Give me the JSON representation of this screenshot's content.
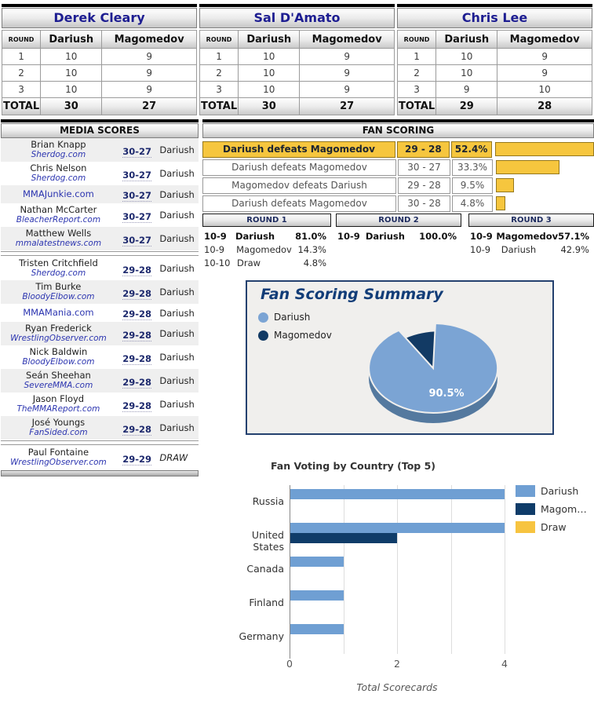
{
  "judges": [
    {
      "name": "Derek Cleary",
      "round_label": "ROUND",
      "total_label": "TOTAL",
      "fighters": [
        "Dariush",
        "Magomedov"
      ],
      "rounds": [
        [
          "1",
          "10",
          "9"
        ],
        [
          "2",
          "10",
          "9"
        ],
        [
          "3",
          "10",
          "9"
        ]
      ],
      "totals": [
        "30",
        "27"
      ]
    },
    {
      "name": "Sal D'Amato",
      "round_label": "ROUND",
      "total_label": "TOTAL",
      "fighters": [
        "Dariush",
        "Magomedov"
      ],
      "rounds": [
        [
          "1",
          "10",
          "9"
        ],
        [
          "2",
          "10",
          "9"
        ],
        [
          "3",
          "10",
          "9"
        ]
      ],
      "totals": [
        "30",
        "27"
      ]
    },
    {
      "name": "Chris Lee",
      "round_label": "ROUND",
      "total_label": "TOTAL",
      "fighters": [
        "Dariush",
        "Magomedov"
      ],
      "rounds": [
        [
          "1",
          "10",
          "9"
        ],
        [
          "2",
          "10",
          "9"
        ],
        [
          "3",
          "9",
          "10"
        ]
      ],
      "totals": [
        "29",
        "28"
      ]
    }
  ],
  "media": {
    "title": "MEDIA SCORES",
    "rows": [
      {
        "group": 1,
        "name": "Brian Knapp",
        "site": "Sherdog.com",
        "score": "30-27",
        "winner": "Dariush"
      },
      {
        "group": 1,
        "name": "Chris Nelson",
        "site": "Sherdog.com",
        "score": "30-27",
        "winner": "Dariush"
      },
      {
        "group": 1,
        "name": "",
        "site": "MMAJunkie.com",
        "score": "30-27",
        "winner": "Dariush"
      },
      {
        "group": 1,
        "name": "Nathan McCarter",
        "site": "BleacherReport.com",
        "score": "30-27",
        "winner": "Dariush"
      },
      {
        "group": 1,
        "name": "Matthew Wells",
        "site": "mmalatestnews.com",
        "score": "30-27",
        "winner": "Dariush"
      },
      {
        "group": 2,
        "name": "Tristen Critchfield",
        "site": "Sherdog.com",
        "score": "29-28",
        "winner": "Dariush"
      },
      {
        "group": 2,
        "name": "Tim Burke",
        "site": "BloodyElbow.com",
        "score": "29-28",
        "winner": "Dariush"
      },
      {
        "group": 2,
        "name": "",
        "site": "MMAMania.com",
        "score": "29-28",
        "winner": "Dariush"
      },
      {
        "group": 2,
        "name": "Ryan Frederick",
        "site": "WrestlingObserver.com",
        "score": "29-28",
        "winner": "Dariush"
      },
      {
        "group": 2,
        "name": "Nick Baldwin",
        "site": "BloodyElbow.com",
        "score": "29-28",
        "winner": "Dariush"
      },
      {
        "group": 2,
        "name": "Seán Sheehan",
        "site": "SevereMMA.com",
        "score": "29-28",
        "winner": "Dariush"
      },
      {
        "group": 2,
        "name": "Jason Floyd",
        "site": "TheMMAReport.com",
        "score": "29-28",
        "winner": "Dariush"
      },
      {
        "group": 2,
        "name": "José Youngs",
        "site": "FanSided.com",
        "score": "29-28",
        "winner": "Dariush"
      },
      {
        "group": 3,
        "name": "Paul Fontaine",
        "site": "WrestlingObserver.com",
        "score": "29-29",
        "winner": "DRAW"
      }
    ]
  },
  "fan_scoring": {
    "title": "FAN SCORING",
    "rows": [
      {
        "outcome": "Dariush defeats Magomedov",
        "score": "29 - 28",
        "pct": "52.4%",
        "pct_value": 52.4,
        "highlight": true
      },
      {
        "outcome": "Dariush defeats Magomedov",
        "score": "30 - 27",
        "pct": "33.3%",
        "pct_value": 33.3,
        "highlight": false
      },
      {
        "outcome": "Magomedov defeats Dariush",
        "score": "29 - 28",
        "pct": "9.5%",
        "pct_value": 9.5,
        "highlight": false
      },
      {
        "outcome": "Dariush defeats Magomedov",
        "score": "30 - 28",
        "pct": "4.8%",
        "pct_value": 4.8,
        "highlight": false
      }
    ]
  },
  "round_breakdown": [
    {
      "title": "ROUND 1",
      "rows": [
        {
          "score": "10-9",
          "name": "Dariush",
          "pct": "81.0%",
          "bold": true
        },
        {
          "score": "10-9",
          "name": "Magomedov",
          "pct": "14.3%",
          "bold": false
        },
        {
          "score": "10-10",
          "name": "Draw",
          "pct": "4.8%",
          "bold": false
        }
      ]
    },
    {
      "title": "ROUND 2",
      "rows": [
        {
          "score": "10-9",
          "name": "Dariush",
          "pct": "100.0%",
          "bold": true
        }
      ]
    },
    {
      "title": "ROUND 3",
      "rows": [
        {
          "score": "10-9",
          "name": "Magomedov",
          "pct": "57.1%",
          "bold": true
        },
        {
          "score": "10-9",
          "name": "Dariush",
          "pct": "42.9%",
          "bold": false
        }
      ]
    }
  ],
  "chart_data": [
    {
      "type": "pie",
      "title": "Fan Scoring Summary",
      "labels": [
        "Dariush",
        "Magomedov"
      ],
      "values": [
        90.5,
        9.5
      ],
      "value_labels": [
        "90.5%",
        "9.5%"
      ],
      "shown_label": "90.5%",
      "colors": [
        "#7ba4d4",
        "#123a64"
      ],
      "side_colors": [
        "#54799f",
        "#0a2945"
      ],
      "legend_position": "top-left",
      "exploded_slice": "Magomedov",
      "style": "3d"
    },
    {
      "type": "bar",
      "title": "Fan Voting by Country (Top 5)",
      "orientation": "horizontal",
      "categories": [
        "Russia",
        "United States",
        "Canada",
        "Finland",
        "Germany"
      ],
      "series": [
        {
          "name": "Dariush",
          "color": "#6f9fd3",
          "values": [
            4,
            4,
            1,
            1,
            1
          ]
        },
        {
          "name": "Magomedov",
          "color": "#0f3c69",
          "values": [
            0,
            2,
            0,
            0,
            0
          ]
        },
        {
          "name": "Draw",
          "color": "#f7c440",
          "values": [
            0,
            0,
            0,
            0,
            0
          ]
        }
      ],
      "legend_labels": [
        "Dariush",
        "Magom…",
        "Draw"
      ],
      "xlabel": "Total Scorecards",
      "xlim": [
        0,
        4
      ],
      "xticks": [
        0,
        2,
        4
      ],
      "gridlines": [
        0,
        1,
        2,
        3,
        4
      ],
      "grid": true,
      "legend_position": "top-right"
    }
  ]
}
